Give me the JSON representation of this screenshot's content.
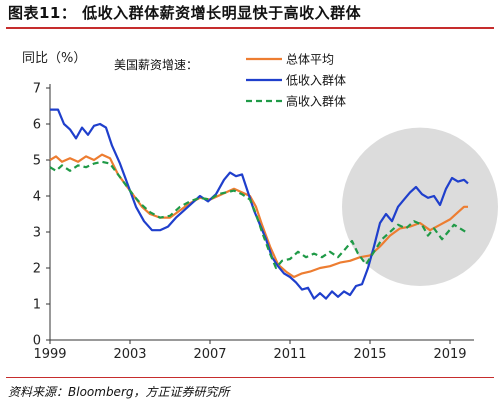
{
  "figure_title": "图表11：  低收入群体薪资增长明显快于高收入群体",
  "source_note": "资料来源：Bloomberg，方正证券研究所",
  "chart_data": {
    "type": "line",
    "title": "",
    "ylabel": "同比（%）",
    "xlabel": "",
    "legend_title": "美国薪资增速：",
    "legend_position": "top-center",
    "xlim": [
      1999,
      2020.2
    ],
    "ylim": [
      0,
      7
    ],
    "xticks": [
      1999,
      2003,
      2007,
      2011,
      2015,
      2019
    ],
    "yticks": [
      0,
      1,
      2,
      3,
      4,
      5,
      6,
      7
    ],
    "grid": false,
    "highlight_ellipse": {
      "x_center": 2017.5,
      "y_center": 3.7,
      "x_radius": 3.9,
      "y_radius": 2.2,
      "color": "#dcdcdc"
    },
    "series": [
      {
        "name": "总体平均",
        "color": "#ed7d31",
        "style": "solid",
        "points": [
          [
            1999.0,
            5.0
          ],
          [
            1999.3,
            5.1
          ],
          [
            1999.6,
            4.95
          ],
          [
            2000.0,
            5.05
          ],
          [
            2000.4,
            4.95
          ],
          [
            2000.8,
            5.1
          ],
          [
            2001.2,
            5.0
          ],
          [
            2001.6,
            5.15
          ],
          [
            2002.0,
            5.05
          ],
          [
            2002.4,
            4.6
          ],
          [
            2002.8,
            4.3
          ],
          [
            2003.2,
            4.0
          ],
          [
            2003.6,
            3.7
          ],
          [
            2004.0,
            3.5
          ],
          [
            2004.5,
            3.4
          ],
          [
            2005.0,
            3.4
          ],
          [
            2005.5,
            3.6
          ],
          [
            2006.0,
            3.8
          ],
          [
            2006.5,
            3.95
          ],
          [
            2007.0,
            3.9
          ],
          [
            2007.4,
            4.0
          ],
          [
            2007.8,
            4.1
          ],
          [
            2008.2,
            4.2
          ],
          [
            2008.6,
            4.1
          ],
          [
            2009.0,
            4.0
          ],
          [
            2009.3,
            3.7
          ],
          [
            2009.6,
            3.2
          ],
          [
            2010.0,
            2.6
          ],
          [
            2010.4,
            2.1
          ],
          [
            2010.8,
            1.9
          ],
          [
            2011.2,
            1.75
          ],
          [
            2011.6,
            1.85
          ],
          [
            2012.0,
            1.9
          ],
          [
            2012.5,
            2.0
          ],
          [
            2013.0,
            2.05
          ],
          [
            2013.5,
            2.15
          ],
          [
            2014.0,
            2.2
          ],
          [
            2014.5,
            2.3
          ],
          [
            2015.0,
            2.35
          ],
          [
            2015.5,
            2.6
          ],
          [
            2016.0,
            2.9
          ],
          [
            2016.5,
            3.1
          ],
          [
            2017.0,
            3.15
          ],
          [
            2017.5,
            3.25
          ],
          [
            2018.0,
            3.05
          ],
          [
            2018.5,
            3.2
          ],
          [
            2019.0,
            3.35
          ],
          [
            2019.4,
            3.55
          ],
          [
            2019.7,
            3.7
          ],
          [
            2019.9,
            3.7
          ]
        ]
      },
      {
        "name": "低收入群体",
        "color": "#1f3fcc",
        "style": "solid",
        "points": [
          [
            1999.0,
            6.4
          ],
          [
            1999.4,
            6.4
          ],
          [
            1999.7,
            6.0
          ],
          [
            2000.0,
            5.85
          ],
          [
            2000.3,
            5.6
          ],
          [
            2000.6,
            5.9
          ],
          [
            2000.9,
            5.7
          ],
          [
            2001.2,
            5.95
          ],
          [
            2001.5,
            6.0
          ],
          [
            2001.8,
            5.9
          ],
          [
            2002.1,
            5.4
          ],
          [
            2002.5,
            4.9
          ],
          [
            2002.9,
            4.3
          ],
          [
            2003.3,
            3.7
          ],
          [
            2003.7,
            3.3
          ],
          [
            2004.1,
            3.05
          ],
          [
            2004.5,
            3.05
          ],
          [
            2004.9,
            3.15
          ],
          [
            2005.3,
            3.4
          ],
          [
            2005.7,
            3.6
          ],
          [
            2006.1,
            3.8
          ],
          [
            2006.5,
            4.0
          ],
          [
            2006.9,
            3.85
          ],
          [
            2007.3,
            4.05
          ],
          [
            2007.7,
            4.45
          ],
          [
            2008.0,
            4.65
          ],
          [
            2008.3,
            4.55
          ],
          [
            2008.6,
            4.6
          ],
          [
            2008.9,
            4.1
          ],
          [
            2009.2,
            3.6
          ],
          [
            2009.5,
            3.2
          ],
          [
            2009.8,
            2.8
          ],
          [
            2010.1,
            2.3
          ],
          [
            2010.4,
            2.05
          ],
          [
            2010.7,
            1.85
          ],
          [
            2011.0,
            1.75
          ],
          [
            2011.3,
            1.6
          ],
          [
            2011.6,
            1.4
          ],
          [
            2011.9,
            1.45
          ],
          [
            2012.2,
            1.15
          ],
          [
            2012.5,
            1.3
          ],
          [
            2012.8,
            1.15
          ],
          [
            2013.1,
            1.35
          ],
          [
            2013.4,
            1.2
          ],
          [
            2013.7,
            1.35
          ],
          [
            2014.0,
            1.25
          ],
          [
            2014.3,
            1.5
          ],
          [
            2014.6,
            1.55
          ],
          [
            2014.9,
            2.0
          ],
          [
            2015.2,
            2.6
          ],
          [
            2015.5,
            3.25
          ],
          [
            2015.8,
            3.5
          ],
          [
            2016.1,
            3.3
          ],
          [
            2016.4,
            3.7
          ],
          [
            2016.7,
            3.9
          ],
          [
            2017.0,
            4.1
          ],
          [
            2017.3,
            4.25
          ],
          [
            2017.6,
            4.05
          ],
          [
            2017.9,
            3.95
          ],
          [
            2018.2,
            4.0
          ],
          [
            2018.5,
            3.75
          ],
          [
            2018.8,
            4.2
          ],
          [
            2019.1,
            4.5
          ],
          [
            2019.4,
            4.4
          ],
          [
            2019.7,
            4.45
          ],
          [
            2019.9,
            4.35
          ]
        ]
      },
      {
        "name": "高收入群体",
        "color": "#1f9a47",
        "style": "dashed",
        "points": [
          [
            1999.0,
            4.8
          ],
          [
            1999.3,
            4.7
          ],
          [
            1999.6,
            4.85
          ],
          [
            2000.0,
            4.7
          ],
          [
            2000.4,
            4.85
          ],
          [
            2000.8,
            4.8
          ],
          [
            2001.2,
            4.9
          ],
          [
            2001.6,
            4.95
          ],
          [
            2002.0,
            4.9
          ],
          [
            2002.4,
            4.6
          ],
          [
            2002.8,
            4.3
          ],
          [
            2003.2,
            4.0
          ],
          [
            2003.6,
            3.75
          ],
          [
            2004.0,
            3.55
          ],
          [
            2004.5,
            3.4
          ],
          [
            2005.0,
            3.45
          ],
          [
            2005.5,
            3.7
          ],
          [
            2006.0,
            3.85
          ],
          [
            2006.5,
            3.95
          ],
          [
            2007.0,
            3.9
          ],
          [
            2007.4,
            4.05
          ],
          [
            2007.8,
            4.1
          ],
          [
            2008.2,
            4.15
          ],
          [
            2008.6,
            4.05
          ],
          [
            2009.0,
            3.9
          ],
          [
            2009.3,
            3.5
          ],
          [
            2009.6,
            3.0
          ],
          [
            2010.0,
            2.4
          ],
          [
            2010.3,
            2.0
          ],
          [
            2010.6,
            2.2
          ],
          [
            2011.0,
            2.25
          ],
          [
            2011.4,
            2.45
          ],
          [
            2011.8,
            2.3
          ],
          [
            2012.2,
            2.4
          ],
          [
            2012.6,
            2.3
          ],
          [
            2013.0,
            2.45
          ],
          [
            2013.4,
            2.3
          ],
          [
            2013.8,
            2.55
          ],
          [
            2014.1,
            2.75
          ],
          [
            2014.4,
            2.4
          ],
          [
            2014.8,
            2.1
          ],
          [
            2015.2,
            2.45
          ],
          [
            2015.6,
            2.8
          ],
          [
            2016.0,
            3.0
          ],
          [
            2016.4,
            3.2
          ],
          [
            2016.8,
            3.1
          ],
          [
            2017.2,
            3.3
          ],
          [
            2017.6,
            3.2
          ],
          [
            2017.9,
            2.9
          ],
          [
            2018.2,
            3.1
          ],
          [
            2018.6,
            2.8
          ],
          [
            2018.9,
            3.0
          ],
          [
            2019.2,
            3.2
          ],
          [
            2019.5,
            3.1
          ],
          [
            2019.8,
            3.0
          ]
        ]
      }
    ]
  }
}
